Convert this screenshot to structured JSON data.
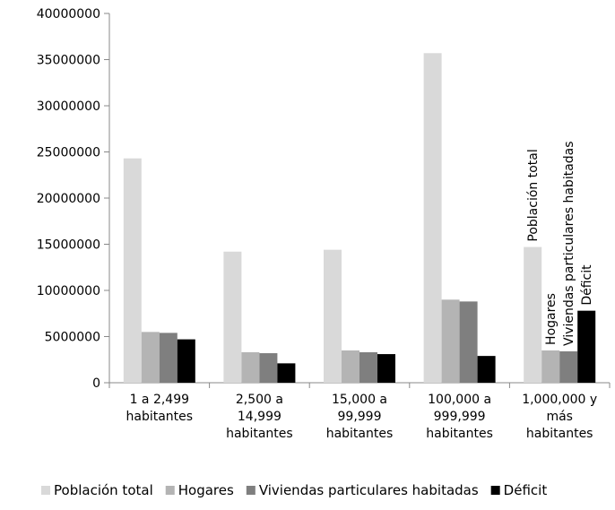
{
  "chart_data": {
    "type": "bar",
    "categories": [
      [
        "1 a 2,499",
        "habitantes"
      ],
      [
        "2,500 a",
        "14,999",
        "habitantes"
      ],
      [
        "15,000 a",
        "99,999",
        "habitantes"
      ],
      [
        "100,000 a",
        "999,999",
        "habitantes"
      ],
      [
        "1,000,000 y",
        "más",
        "habitantes"
      ]
    ],
    "series": [
      {
        "name": "Población total",
        "color": "#d9d9d9",
        "values": [
          24300000,
          14200000,
          14400000,
          35700000,
          14700000
        ]
      },
      {
        "name": "Hogares",
        "color": "#b4b4b4",
        "values": [
          5500000,
          3300000,
          3500000,
          9000000,
          3500000
        ]
      },
      {
        "name": "Viviendas particulares habitadas",
        "color": "#7f7f7f",
        "values": [
          5400000,
          3200000,
          3300000,
          8800000,
          3400000
        ]
      },
      {
        "name": "Déficit",
        "color": "#000000",
        "values": [
          4700000,
          2100000,
          3100000,
          2900000,
          7800000
        ]
      }
    ],
    "ylim": [
      0,
      40000000
    ],
    "yticks": [
      "0",
      "5000000",
      "10000000",
      "15000000",
      "20000000",
      "25000000",
      "30000000",
      "35000000",
      "40000000"
    ],
    "annotations": {
      "category_index": 4,
      "labels": [
        "Población total",
        "Hogares",
        "Viviendas particulares habitadas",
        "Déficit"
      ]
    },
    "grid": false,
    "legend_position": "bottom",
    "title": "",
    "xlabel": "",
    "ylabel": ""
  }
}
